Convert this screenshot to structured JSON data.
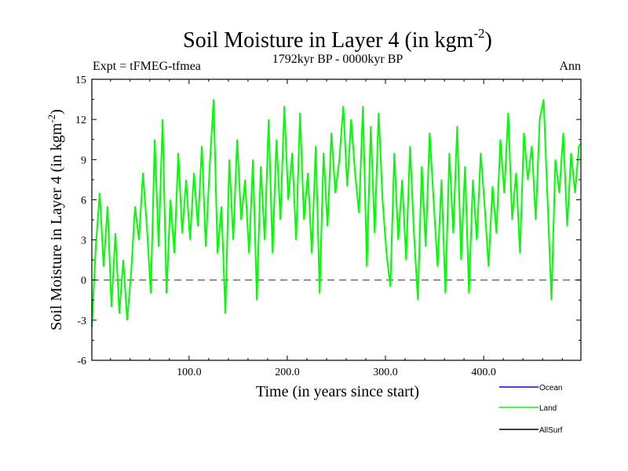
{
  "chart_data": {
    "type": "line",
    "title": "Soil Moisture in Layer 4 (in kgm",
    "title_sup": "-2",
    "title_close": ")",
    "subtitle": "1792kyr BP - 0000kyr BP",
    "expt_label": "Expt = tFMEG-tfmea",
    "season_label": "Ann",
    "xlabel": "Time (in years since start)",
    "ylabel": "Soil Moisture in Layer 4 (in kgm",
    "ylabel_sup": "-2",
    "ylabel_close": ")",
    "xlim": [
      1,
      499
    ],
    "ylim": [
      -6,
      15
    ],
    "x_ticks": [
      100,
      200,
      300,
      400
    ],
    "x_tick_labels": [
      "100.0",
      "200.0",
      "300.0",
      "400.0"
    ],
    "y_ticks": [
      -6,
      -3,
      0,
      3,
      6,
      9,
      12,
      15
    ],
    "y_tick_labels": [
      "-6",
      "-3",
      "0",
      "3",
      "6",
      "9",
      "12",
      "15"
    ],
    "zero_line": 0,
    "legend": [
      {
        "name": "Ocean",
        "color": "#0000ff"
      },
      {
        "name": "Land",
        "color": "#00ff00"
      },
      {
        "name": "AllSurf",
        "color": "#000000"
      }
    ],
    "series": [
      {
        "name": "Land",
        "color": "#00ff00",
        "x": [
          1,
          5,
          9,
          13,
          17,
          21,
          25,
          29,
          33,
          37,
          41,
          45,
          49,
          53,
          57,
          61,
          65,
          69,
          73,
          77,
          81,
          85,
          89,
          93,
          97,
          101,
          105,
          109,
          113,
          117,
          121,
          125,
          129,
          133,
          137,
          141,
          145,
          149,
          153,
          157,
          161,
          165,
          169,
          173,
          177,
          181,
          185,
          189,
          193,
          197,
          201,
          205,
          209,
          213,
          217,
          221,
          225,
          229,
          233,
          237,
          241,
          245,
          249,
          253,
          257,
          261,
          265,
          269,
          273,
          277,
          281,
          285,
          289,
          293,
          297,
          301,
          305,
          309,
          313,
          317,
          321,
          325,
          329,
          333,
          337,
          341,
          345,
          349,
          353,
          357,
          361,
          365,
          369,
          373,
          377,
          381,
          385,
          389,
          393,
          397,
          401,
          405,
          409,
          413,
          417,
          421,
          425,
          429,
          433,
          437,
          441,
          445,
          449,
          453,
          457,
          461,
          465,
          469,
          473,
          477,
          481,
          485,
          489,
          493,
          497,
          499
        ],
        "values": [
          -3.5,
          2.5,
          6.5,
          1.0,
          5.5,
          -2.0,
          3.5,
          -2.5,
          1.5,
          -3.0,
          0.5,
          5.5,
          3.0,
          8.0,
          4.0,
          -1.0,
          10.5,
          2.5,
          12.0,
          -1.0,
          6.0,
          2.0,
          9.5,
          3.5,
          7.5,
          3.0,
          8.0,
          4.0,
          10.0,
          2.5,
          8.5,
          13.5,
          2.0,
          5.5,
          -2.5,
          9.0,
          3.0,
          10.5,
          4.5,
          7.5,
          2.0,
          9.0,
          -1.5,
          8.5,
          3.0,
          12.0,
          2.0,
          10.5,
          4.5,
          13.0,
          6.0,
          9.5,
          3.0,
          12.5,
          4.5,
          8.0,
          2.0,
          10.0,
          -1.0,
          9.5,
          4.0,
          11.0,
          6.5,
          9.0,
          13.0,
          7.0,
          12.0,
          8.0,
          5.0,
          13.0,
          1.0,
          11.5,
          3.5,
          12.5,
          6.0,
          2.0,
          -0.5,
          9.5,
          3.0,
          7.5,
          1.5,
          10.0,
          3.5,
          -1.5,
          8.5,
          2.5,
          11.0,
          6.0,
          1.0,
          7.5,
          -1.0,
          9.5,
          3.5,
          11.5,
          1.5,
          8.5,
          -1.0,
          7.5,
          3.0,
          9.5,
          5.5,
          1.0,
          7.0,
          3.5,
          10.5,
          6.5,
          12.5,
          4.5,
          8.0,
          2.0,
          11.0,
          7.5,
          10.0,
          4.5,
          12.0,
          13.5,
          6.0,
          -1.5,
          9.0,
          6.5,
          11.0,
          4.0,
          9.5,
          6.5,
          10.0,
          10.2
        ]
      }
    ]
  }
}
